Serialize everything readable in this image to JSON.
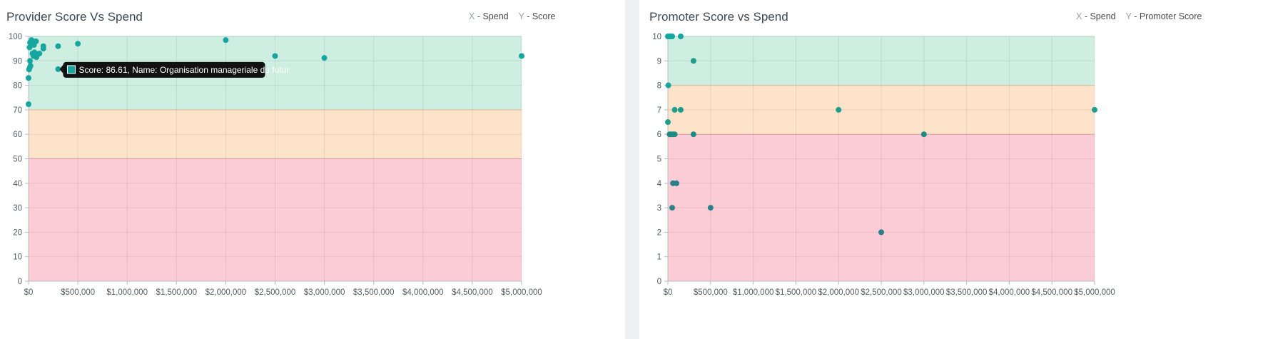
{
  "chart_data": [
    {
      "type": "scatter",
      "title": "Provider Score Vs Spend",
      "legend": [
        {
          "key": "X",
          "label": " - Spend"
        },
        {
          "key": "Y",
          "label": " - Score"
        }
      ],
      "xlim": [
        0,
        5000000
      ],
      "ylim": [
        0,
        100
      ],
      "x_ticks": [
        "$0",
        "$500,000",
        "$1,000,000",
        "$1,500,000",
        "$2,000,000",
        "$2,500,000",
        "$3,000,000",
        "$3,500,000",
        "$4,000,000",
        "$4,500,000",
        "$5,000,000"
      ],
      "y_ticks": [
        "0",
        "10",
        "20",
        "30",
        "40",
        "50",
        "60",
        "70",
        "80",
        "90",
        "100"
      ],
      "grid": true,
      "bands": [
        {
          "from": 70,
          "to": 100,
          "color": "#cdeee0",
          "border": "#b9e2cf"
        },
        {
          "from": 50,
          "to": 70,
          "color": "#fde3c9",
          "border": "#f2c9a5"
        },
        {
          "from": 0,
          "to": 50,
          "color": "#fbccd5",
          "border": "#eba5b4"
        }
      ],
      "point_color": "#16a6a0",
      "points": [
        {
          "x": 0,
          "y": 72.3
        },
        {
          "x": 0,
          "y": 83
        },
        {
          "x": 5000,
          "y": 86.5
        },
        {
          "x": 15000,
          "y": 87.5
        },
        {
          "x": 20000,
          "y": 88
        },
        {
          "x": 15000,
          "y": 90
        },
        {
          "x": 10000,
          "y": 95.5
        },
        {
          "x": 15000,
          "y": 97.5
        },
        {
          "x": 30000,
          "y": 98.5
        },
        {
          "x": 50000,
          "y": 98
        },
        {
          "x": 75000,
          "y": 98
        },
        {
          "x": 55000,
          "y": 96.5
        },
        {
          "x": 40000,
          "y": 93
        },
        {
          "x": 50000,
          "y": 92
        },
        {
          "x": 60000,
          "y": 93.5
        },
        {
          "x": 70000,
          "y": 93
        },
        {
          "x": 80000,
          "y": 91.5
        },
        {
          "x": 90000,
          "y": 92.5
        },
        {
          "x": 110000,
          "y": 93
        },
        {
          "x": 150000,
          "y": 95
        },
        {
          "x": 150000,
          "y": 96
        },
        {
          "x": 300000,
          "y": 96
        },
        {
          "x": 300000,
          "y": 86.61
        },
        {
          "x": 500000,
          "y": 97
        },
        {
          "x": 2000000,
          "y": 98.5
        },
        {
          "x": 2500000,
          "y": 92
        },
        {
          "x": 3000000,
          "y": 91.2
        },
        {
          "x": 5000000,
          "y": 92
        }
      ],
      "tooltip": {
        "x": 300000,
        "y": 86.61,
        "text": "Score: 86.61, Name: Organisation manageriale du futur",
        "swatch_color": "#16a6a0"
      }
    },
    {
      "type": "scatter",
      "title": "Promoter Score vs Spend",
      "legend": [
        {
          "key": "X",
          "label": " - Spend"
        },
        {
          "key": "Y",
          "label": " - Promoter Score"
        }
      ],
      "xlim": [
        0,
        5000000
      ],
      "ylim": [
        0,
        10
      ],
      "x_ticks": [
        "$0",
        "$500,000",
        "$1,000,000",
        "$1,500,000",
        "$2,000,000",
        "$2,500,000",
        "$3,000,000",
        "$3,500,000",
        "$4,000,000",
        "$4,500,000",
        "$5,000,000"
      ],
      "y_ticks": [
        "0",
        "1",
        "2",
        "3",
        "4",
        "5",
        "6",
        "7",
        "8",
        "9",
        "10"
      ],
      "grid": true,
      "bands": [
        {
          "from": 8,
          "to": 10,
          "color": "#cdeee0",
          "border": "#b9e2cf"
        },
        {
          "from": 6,
          "to": 8,
          "color": "#fde3c9",
          "border": "#f2c9a5"
        },
        {
          "from": 0,
          "to": 6,
          "color": "#fbccd5",
          "border": "#eba5b4"
        }
      ],
      "points": [
        {
          "x": 0,
          "y": 10,
          "color": "#16a6a0"
        },
        {
          "x": 20000,
          "y": 10,
          "color": "#16a6a0"
        },
        {
          "x": 30000,
          "y": 10,
          "color": "#16a6a0"
        },
        {
          "x": 50000,
          "y": 10,
          "color": "#16a6a0"
        },
        {
          "x": 150000,
          "y": 10,
          "color": "#16a6a0"
        },
        {
          "x": 300000,
          "y": 9,
          "color": "#1f9e8c"
        },
        {
          "x": 5000,
          "y": 8,
          "color": "#16a6a0"
        },
        {
          "x": 0,
          "y": 6.5,
          "color": "#1f9e8c"
        },
        {
          "x": 80000,
          "y": 7,
          "color": "#1f9e8c"
        },
        {
          "x": 150000,
          "y": 7,
          "color": "#1f9e8c"
        },
        {
          "x": 2000000,
          "y": 7,
          "color": "#1f9e8c"
        },
        {
          "x": 5000000,
          "y": 7,
          "color": "#1f9e8c"
        },
        {
          "x": 20000,
          "y": 6,
          "color": "#1f8a85"
        },
        {
          "x": 40000,
          "y": 6,
          "color": "#1f8a85"
        },
        {
          "x": 60000,
          "y": 6,
          "color": "#1f8a85"
        },
        {
          "x": 80000,
          "y": 6,
          "color": "#1f8a85"
        },
        {
          "x": 300000,
          "y": 6,
          "color": "#1f8a85"
        },
        {
          "x": 3000000,
          "y": 6,
          "color": "#1f8a85"
        },
        {
          "x": 60000,
          "y": 4,
          "color": "#2a7f8c"
        },
        {
          "x": 100000,
          "y": 4,
          "color": "#2a7f8c"
        },
        {
          "x": 50000,
          "y": 3,
          "color": "#2a7f8c"
        },
        {
          "x": 500000,
          "y": 3,
          "color": "#2a7f8c"
        },
        {
          "x": 2500000,
          "y": 2,
          "color": "#2a7f8c"
        }
      ]
    }
  ]
}
